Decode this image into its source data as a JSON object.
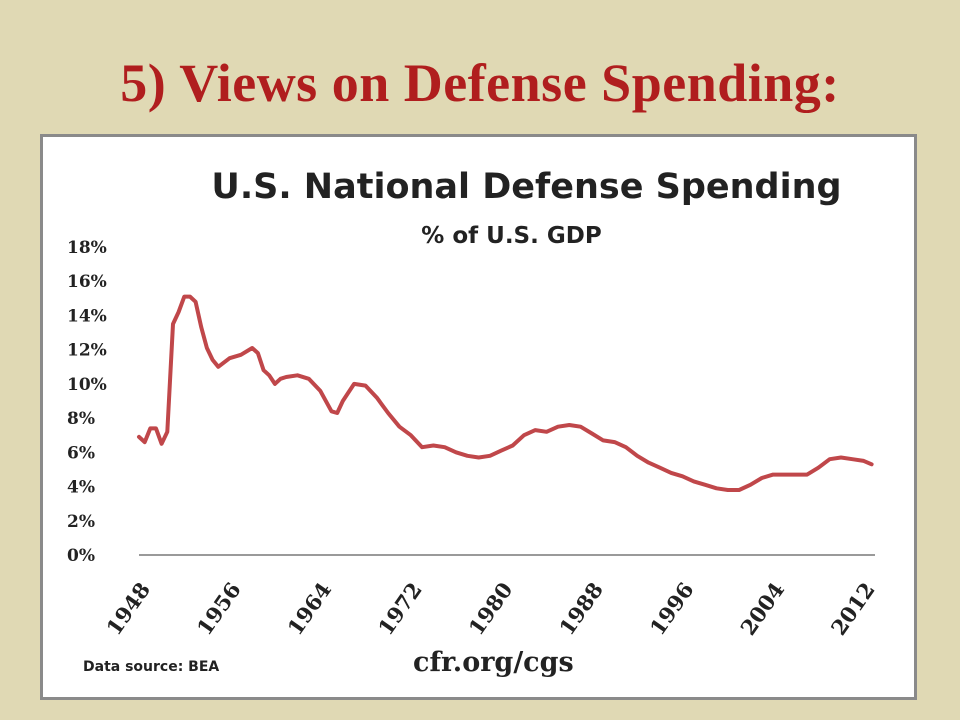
{
  "slide": {
    "title": "5) Views on Defense Spending:"
  },
  "chart_data": {
    "type": "line",
    "title": "U.S. National Defense Spending",
    "subtitle": "% of U.S. GDP",
    "xlabel": "",
    "ylabel": "",
    "source": "Data source: BEA",
    "credit": "cfr.org/cgs",
    "xlim": [
      1948,
      2013
    ],
    "ylim": [
      0,
      18
    ],
    "y_ticks": [
      "0%",
      "2%",
      "4%",
      "6%",
      "8%",
      "10%",
      "12%",
      "14%",
      "16%",
      "18%"
    ],
    "x_ticks": [
      "1948",
      "1956",
      "1964",
      "1972",
      "1980",
      "1988",
      "1996",
      "2004",
      "2012"
    ],
    "grid": false,
    "legend": "none",
    "colors": {
      "line": "#c0474a",
      "axis": "#9a9a9a"
    },
    "series": [
      {
        "values_x": [
          1948,
          1948.5,
          1949,
          1949.5,
          1950,
          1950.5,
          1951,
          1951.5,
          1952,
          1952.5,
          1953,
          1953.5,
          1954,
          1954.5,
          1955,
          1956,
          1957,
          1958,
          1958.5,
          1959,
          1959.5,
          1960,
          1960.5,
          1961,
          1962,
          1963,
          1964,
          1965,
          1965.5,
          1966,
          1967,
          1968,
          1969,
          1970,
          1971,
          1972,
          1973,
          1974,
          1975,
          1976,
          1977,
          1978,
          1979,
          1980,
          1981,
          1982,
          1983,
          1984,
          1985,
          1986,
          1987,
          1988,
          1989,
          1990,
          1991,
          1992,
          1993,
          1994,
          1995,
          1996,
          1997,
          1998,
          1999,
          2000,
          2001,
          2002,
          2003,
          2004,
          2005,
          2006,
          2007,
          2008,
          2009,
          2010,
          2011,
          2012,
          2012.7
        ],
        "values": [
          6.9,
          6.6,
          7.4,
          7.4,
          6.5,
          7.2,
          13.5,
          14.2,
          15.1,
          15.1,
          14.8,
          13.3,
          12.1,
          11.4,
          11.0,
          11.5,
          11.7,
          12.1,
          11.8,
          10.8,
          10.5,
          10.0,
          10.3,
          10.4,
          10.5,
          10.3,
          9.6,
          8.4,
          8.3,
          9.0,
          10.0,
          9.9,
          9.2,
          8.3,
          7.5,
          7.0,
          6.3,
          6.4,
          6.3,
          6.0,
          5.8,
          5.7,
          5.8,
          6.1,
          6.4,
          7.0,
          7.3,
          7.2,
          7.5,
          7.6,
          7.5,
          7.1,
          6.7,
          6.6,
          6.3,
          5.8,
          5.4,
          5.1,
          4.8,
          4.6,
          4.3,
          4.1,
          3.9,
          3.8,
          3.8,
          4.1,
          4.5,
          4.7,
          4.7,
          4.7,
          4.7,
          5.1,
          5.6,
          5.7,
          5.6,
          5.5,
          5.3
        ]
      }
    ]
  }
}
